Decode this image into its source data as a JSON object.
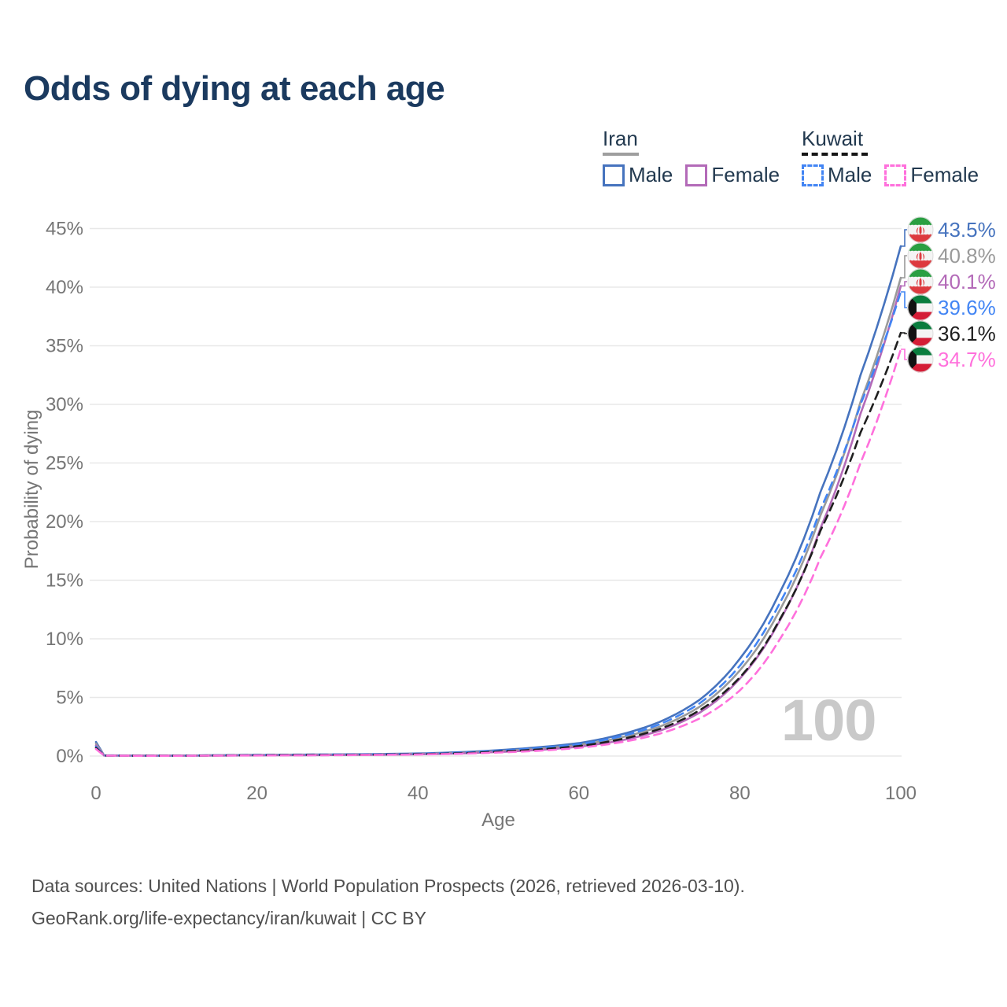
{
  "title": "Odds of dying at each age",
  "watermark_age": "100",
  "legend": {
    "groups": [
      {
        "name": "Iran",
        "line_style": "solid",
        "underline_color": "#9e9e9e",
        "items": [
          {
            "label": "Male",
            "color": "#4673be"
          },
          {
            "label": "Female",
            "color": "#b36ab8"
          }
        ]
      },
      {
        "name": "Kuwait",
        "line_style": "dashed",
        "underline_color": "#151515",
        "items": [
          {
            "label": "Male",
            "color": "#4285f4"
          },
          {
            "label": "Female",
            "color": "#ff70dc"
          }
        ]
      }
    ]
  },
  "footer": {
    "line1": "Data sources: United Nations | World Population Prospects (2026, retrieved 2026-03-10).",
    "line2": "GeoRank.org/life-expectancy/iran/kuwait | CC BY"
  },
  "chart_data": {
    "type": "line",
    "title": "Odds of dying at each age",
    "xlabel": "Age",
    "ylabel": "Probability of dying",
    "xlim": [
      0,
      100
    ],
    "ylim_pct": [
      0,
      45
    ],
    "grid": "horizontal",
    "x_ticks": [
      "0",
      "20",
      "40",
      "60",
      "80",
      "100"
    ],
    "y_ticks": [
      {
        "label": "0%",
        "value": 0
      },
      {
        "label": "5%",
        "value": 5
      },
      {
        "label": "10%",
        "value": 10
      },
      {
        "label": "15%",
        "value": 15
      },
      {
        "label": "20%",
        "value": 20
      },
      {
        "label": "25%",
        "value": 25
      },
      {
        "label": "30%",
        "value": 30
      },
      {
        "label": "35%",
        "value": 35
      },
      {
        "label": "40%",
        "value": 40
      },
      {
        "label": "45%",
        "value": 45
      }
    ],
    "ages": [
      0,
      1,
      5,
      10,
      15,
      20,
      25,
      30,
      35,
      40,
      45,
      50,
      55,
      60,
      65,
      70,
      75,
      80,
      85,
      90,
      95,
      100
    ],
    "series": [
      {
        "id": "iran-male",
        "name": "Iran Male",
        "country": "iran",
        "color": "#4673be",
        "dash": false,
        "end_label": "43.5%",
        "end_value_pct": 43.5,
        "values_pct": [
          1.2,
          0.06,
          0.04,
          0.04,
          0.07,
          0.1,
          0.12,
          0.14,
          0.17,
          0.22,
          0.32,
          0.5,
          0.75,
          1.1,
          1.8,
          2.9,
          4.8,
          8.3,
          14.0,
          22.5,
          32.5,
          43.5
        ]
      },
      {
        "id": "iran-total",
        "name": "Iran",
        "country": "iran",
        "color": "#9a9a9a",
        "dash": false,
        "end_label": "40.8%",
        "end_value_pct": 40.8,
        "values_pct": [
          1.05,
          0.05,
          0.035,
          0.035,
          0.06,
          0.08,
          0.1,
          0.12,
          0.14,
          0.18,
          0.26,
          0.42,
          0.62,
          0.95,
          1.55,
          2.5,
          4.2,
          7.3,
          12.5,
          20.5,
          30.2,
          40.8
        ]
      },
      {
        "id": "iran-female",
        "name": "Iran Female",
        "country": "iran",
        "color": "#b36ab8",
        "dash": false,
        "end_label": "40.1%",
        "end_value_pct": 40.1,
        "values_pct": [
          0.9,
          0.05,
          0.03,
          0.03,
          0.04,
          0.06,
          0.07,
          0.09,
          0.11,
          0.15,
          0.22,
          0.35,
          0.52,
          0.8,
          1.3,
          2.15,
          3.7,
          6.6,
          11.6,
          19.4,
          29.2,
          40.1
        ]
      },
      {
        "id": "kuwait-male",
        "name": "Kuwait Male",
        "country": "kuwait",
        "color": "#4285f4",
        "dash": true,
        "end_label": "39.6%",
        "end_value_pct": 39.6,
        "values_pct": [
          0.8,
          0.05,
          0.03,
          0.03,
          0.06,
          0.09,
          0.11,
          0.13,
          0.15,
          0.19,
          0.28,
          0.45,
          0.68,
          1.0,
          1.65,
          2.7,
          4.5,
          7.7,
          13.1,
          21.0,
          30.0,
          39.6
        ]
      },
      {
        "id": "kuwait-total",
        "name": "Kuwait",
        "country": "kuwait",
        "color": "#1f1f1f",
        "dash": true,
        "end_label": "36.1%",
        "end_value_pct": 36.1,
        "values_pct": [
          0.7,
          0.04,
          0.025,
          0.025,
          0.05,
          0.07,
          0.09,
          0.1,
          0.12,
          0.16,
          0.23,
          0.38,
          0.56,
          0.85,
          1.4,
          2.3,
          3.9,
          6.7,
          11.7,
          19.2,
          27.6,
          36.1
        ]
      },
      {
        "id": "kuwait-female",
        "name": "Kuwait Female",
        "country": "kuwait",
        "color": "#ff70dc",
        "dash": true,
        "end_label": "34.7%",
        "end_value_pct": 34.7,
        "values_pct": [
          0.6,
          0.04,
          0.02,
          0.02,
          0.04,
          0.05,
          0.06,
          0.08,
          0.1,
          0.13,
          0.19,
          0.3,
          0.45,
          0.7,
          1.15,
          1.9,
          3.2,
          5.6,
          10.0,
          16.9,
          25.0,
          34.7
        ]
      }
    ]
  }
}
